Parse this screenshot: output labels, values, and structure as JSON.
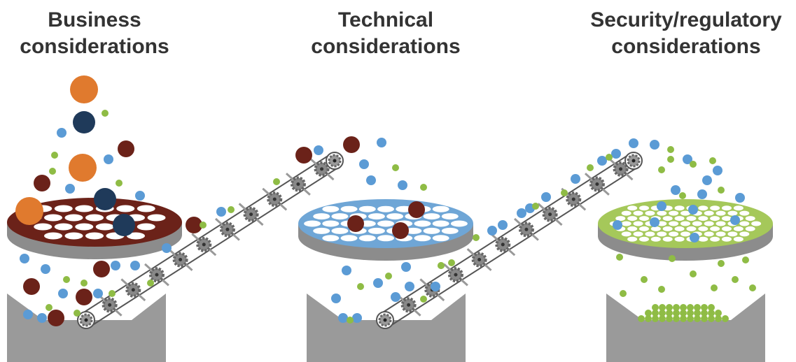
{
  "stages": [
    {
      "title_lines": [
        "Business",
        "considerations"
      ]
    },
    {
      "title_lines": [
        "Technical",
        "considerations"
      ]
    },
    {
      "title_lines": [
        "Security/regulatory",
        "considerations"
      ]
    }
  ]
}
